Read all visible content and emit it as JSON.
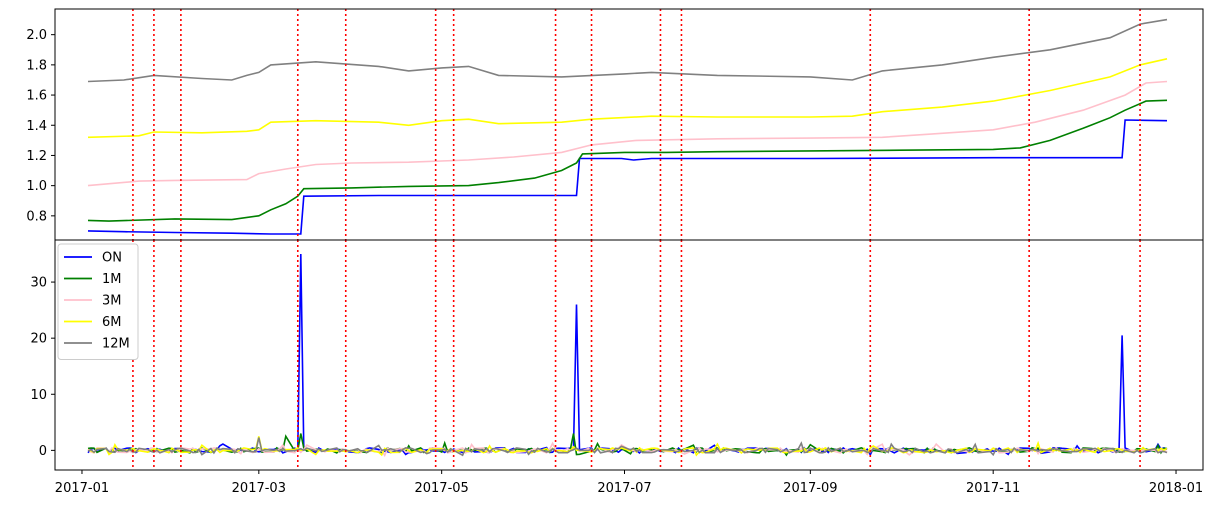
{
  "chart_data": {
    "type": "line",
    "x_range": [
      "2016-12-23",
      "2018-01-10"
    ],
    "x_ticks": [
      {
        "date": "2017-01-01",
        "label": "2017-01"
      },
      {
        "date": "2017-03-01",
        "label": "2017-03"
      },
      {
        "date": "2017-05-01",
        "label": "2017-05"
      },
      {
        "date": "2017-07-01",
        "label": "2017-07"
      },
      {
        "date": "2017-09-01",
        "label": "2017-09"
      },
      {
        "date": "2017-11-01",
        "label": "2017-11"
      },
      {
        "date": "2018-01-01",
        "label": "2018-01"
      }
    ],
    "event_dates": [
      "2017-01-18",
      "2017-01-25",
      "2017-02-03",
      "2017-03-14",
      "2017-03-30",
      "2017-04-29",
      "2017-05-05",
      "2017-06-08",
      "2017-06-20",
      "2017-07-13",
      "2017-07-20",
      "2017-09-21",
      "2017-11-13",
      "2017-12-20"
    ],
    "event_color": "#ff0000",
    "legend": {
      "position": "upper-left"
    },
    "panels": [
      {
        "name": "levels",
        "ylim": [
          0.64,
          2.17
        ],
        "y_ticks": [
          0.8,
          1.0,
          1.2,
          1.4,
          1.6,
          1.8,
          2.0
        ],
        "y_tick_labels": [
          "0.8",
          "1.0",
          "1.2",
          "1.4",
          "1.6",
          "1.8",
          "2.0"
        ],
        "series": [
          {
            "name": "ON",
            "color": "#0000ff",
            "points": [
              [
                "2017-01-03",
                0.7
              ],
              [
                "2017-01-15",
                0.695
              ],
              [
                "2017-02-01",
                0.69
              ],
              [
                "2017-02-20",
                0.685
              ],
              [
                "2017-03-05",
                0.68
              ],
              [
                "2017-03-15",
                0.68
              ],
              [
                "2017-03-16",
                0.93
              ],
              [
                "2017-04-10",
                0.935
              ],
              [
                "2017-05-10",
                0.935
              ],
              [
                "2017-06-15",
                0.935
              ],
              [
                "2017-06-16",
                1.18
              ],
              [
                "2017-06-30",
                1.18
              ],
              [
                "2017-07-04",
                1.17
              ],
              [
                "2017-07-10",
                1.18
              ],
              [
                "2017-09-01",
                1.18
              ],
              [
                "2017-11-01",
                1.185
              ],
              [
                "2017-12-14",
                1.185
              ],
              [
                "2017-12-15",
                1.435
              ],
              [
                "2017-12-29",
                1.43
              ]
            ]
          },
          {
            "name": "1M",
            "color": "#008000",
            "points": [
              [
                "2017-01-03",
                0.77
              ],
              [
                "2017-01-10",
                0.765
              ],
              [
                "2017-02-01",
                0.78
              ],
              [
                "2017-02-20",
                0.775
              ],
              [
                "2017-03-01",
                0.8
              ],
              [
                "2017-03-05",
                0.84
              ],
              [
                "2017-03-10",
                0.88
              ],
              [
                "2017-03-14",
                0.93
              ],
              [
                "2017-03-16",
                0.98
              ],
              [
                "2017-04-01",
                0.985
              ],
              [
                "2017-04-20",
                0.995
              ],
              [
                "2017-05-10",
                1.0
              ],
              [
                "2017-05-20",
                1.02
              ],
              [
                "2017-06-01",
                1.05
              ],
              [
                "2017-06-10",
                1.1
              ],
              [
                "2017-06-15",
                1.15
              ],
              [
                "2017-06-17",
                1.21
              ],
              [
                "2017-07-01",
                1.22
              ],
              [
                "2017-07-15",
                1.22
              ],
              [
                "2017-08-01",
                1.225
              ],
              [
                "2017-09-01",
                1.23
              ],
              [
                "2017-10-01",
                1.235
              ],
              [
                "2017-11-01",
                1.24
              ],
              [
                "2017-11-10",
                1.25
              ],
              [
                "2017-11-20",
                1.3
              ],
              [
                "2017-12-01",
                1.38
              ],
              [
                "2017-12-10",
                1.45
              ],
              [
                "2017-12-15",
                1.5
              ],
              [
                "2017-12-22",
                1.56
              ],
              [
                "2017-12-29",
                1.565
              ]
            ]
          },
          {
            "name": "3M",
            "color": "#ffc0cb",
            "points": [
              [
                "2017-01-03",
                1.0
              ],
              [
                "2017-01-20",
                1.03
              ],
              [
                "2017-02-01",
                1.035
              ],
              [
                "2017-02-25",
                1.04
              ],
              [
                "2017-03-01",
                1.08
              ],
              [
                "2017-03-10",
                1.11
              ],
              [
                "2017-03-20",
                1.14
              ],
              [
                "2017-04-01",
                1.15
              ],
              [
                "2017-04-20",
                1.155
              ],
              [
                "2017-05-10",
                1.17
              ],
              [
                "2017-05-25",
                1.19
              ],
              [
                "2017-06-10",
                1.22
              ],
              [
                "2017-06-20",
                1.27
              ],
              [
                "2017-07-05",
                1.3
              ],
              [
                "2017-08-01",
                1.31
              ],
              [
                "2017-09-01",
                1.315
              ],
              [
                "2017-09-25",
                1.32
              ],
              [
                "2017-10-10",
                1.34
              ],
              [
                "2017-11-01",
                1.37
              ],
              [
                "2017-11-15",
                1.42
              ],
              [
                "2017-12-01",
                1.5
              ],
              [
                "2017-12-15",
                1.6
              ],
              [
                "2017-12-22",
                1.68
              ],
              [
                "2017-12-29",
                1.69
              ]
            ]
          },
          {
            "name": "6M",
            "color": "#ffff00",
            "points": [
              [
                "2017-01-03",
                1.32
              ],
              [
                "2017-01-20",
                1.33
              ],
              [
                "2017-01-25",
                1.355
              ],
              [
                "2017-02-10",
                1.35
              ],
              [
                "2017-02-25",
                1.36
              ],
              [
                "2017-03-01",
                1.37
              ],
              [
                "2017-03-05",
                1.42
              ],
              [
                "2017-03-20",
                1.43
              ],
              [
                "2017-04-10",
                1.42
              ],
              [
                "2017-04-20",
                1.4
              ],
              [
                "2017-05-01",
                1.43
              ],
              [
                "2017-05-10",
                1.44
              ],
              [
                "2017-05-20",
                1.41
              ],
              [
                "2017-06-10",
                1.42
              ],
              [
                "2017-06-20",
                1.44
              ],
              [
                "2017-07-10",
                1.46
              ],
              [
                "2017-08-01",
                1.455
              ],
              [
                "2017-09-01",
                1.455
              ],
              [
                "2017-09-15",
                1.46
              ],
              [
                "2017-09-25",
                1.49
              ],
              [
                "2017-10-15",
                1.52
              ],
              [
                "2017-11-01",
                1.56
              ],
              [
                "2017-11-20",
                1.63
              ],
              [
                "2017-12-10",
                1.72
              ],
              [
                "2017-12-20",
                1.8
              ],
              [
                "2017-12-29",
                1.84
              ]
            ]
          },
          {
            "name": "12M",
            "color": "#808080",
            "points": [
              [
                "2017-01-03",
                1.69
              ],
              [
                "2017-01-15",
                1.7
              ],
              [
                "2017-01-25",
                1.73
              ],
              [
                "2017-02-10",
                1.71
              ],
              [
                "2017-02-20",
                1.7
              ],
              [
                "2017-02-25",
                1.73
              ],
              [
                "2017-03-01",
                1.75
              ],
              [
                "2017-03-05",
                1.8
              ],
              [
                "2017-03-20",
                1.82
              ],
              [
                "2017-04-10",
                1.79
              ],
              [
                "2017-04-20",
                1.76
              ],
              [
                "2017-05-01",
                1.78
              ],
              [
                "2017-05-10",
                1.79
              ],
              [
                "2017-05-20",
                1.73
              ],
              [
                "2017-06-10",
                1.72
              ],
              [
                "2017-07-01",
                1.74
              ],
              [
                "2017-07-10",
                1.75
              ],
              [
                "2017-08-01",
                1.73
              ],
              [
                "2017-09-01",
                1.72
              ],
              [
                "2017-09-15",
                1.7
              ],
              [
                "2017-09-25",
                1.76
              ],
              [
                "2017-10-15",
                1.8
              ],
              [
                "2017-11-01",
                1.85
              ],
              [
                "2017-11-20",
                1.9
              ],
              [
                "2017-12-10",
                1.98
              ],
              [
                "2017-12-20",
                2.07
              ],
              [
                "2017-12-29",
                2.1
              ]
            ]
          }
        ]
      },
      {
        "name": "changes",
        "ylim": [
          -3.5,
          37.5
        ],
        "y_ticks": [
          0,
          10,
          20,
          30
        ],
        "y_tick_labels": [
          "0",
          "10",
          "20",
          "30"
        ],
        "noise_range": [
          -0.9,
          1.3
        ],
        "series": [
          {
            "name": "ON",
            "color": "#0000ff",
            "spikes": [
              [
                "2017-03-15",
                35
              ],
              [
                "2017-06-15",
                26
              ],
              [
                "2017-12-14",
                20.5
              ]
            ]
          },
          {
            "name": "1M",
            "color": "#008000",
            "spikes": [
              [
                "2017-03-15",
                3
              ],
              [
                "2017-03-10",
                2.5
              ],
              [
                "2017-06-14",
                3
              ]
            ]
          },
          {
            "name": "3M",
            "color": "#ffc0cb",
            "spikes": []
          },
          {
            "name": "6M",
            "color": "#ffff00",
            "spikes": [
              [
                "2017-03-01",
                2.5
              ]
            ]
          },
          {
            "name": "12M",
            "color": "#808080",
            "spikes": [
              [
                "2017-03-01",
                2.3
              ]
            ]
          }
        ]
      }
    ]
  }
}
